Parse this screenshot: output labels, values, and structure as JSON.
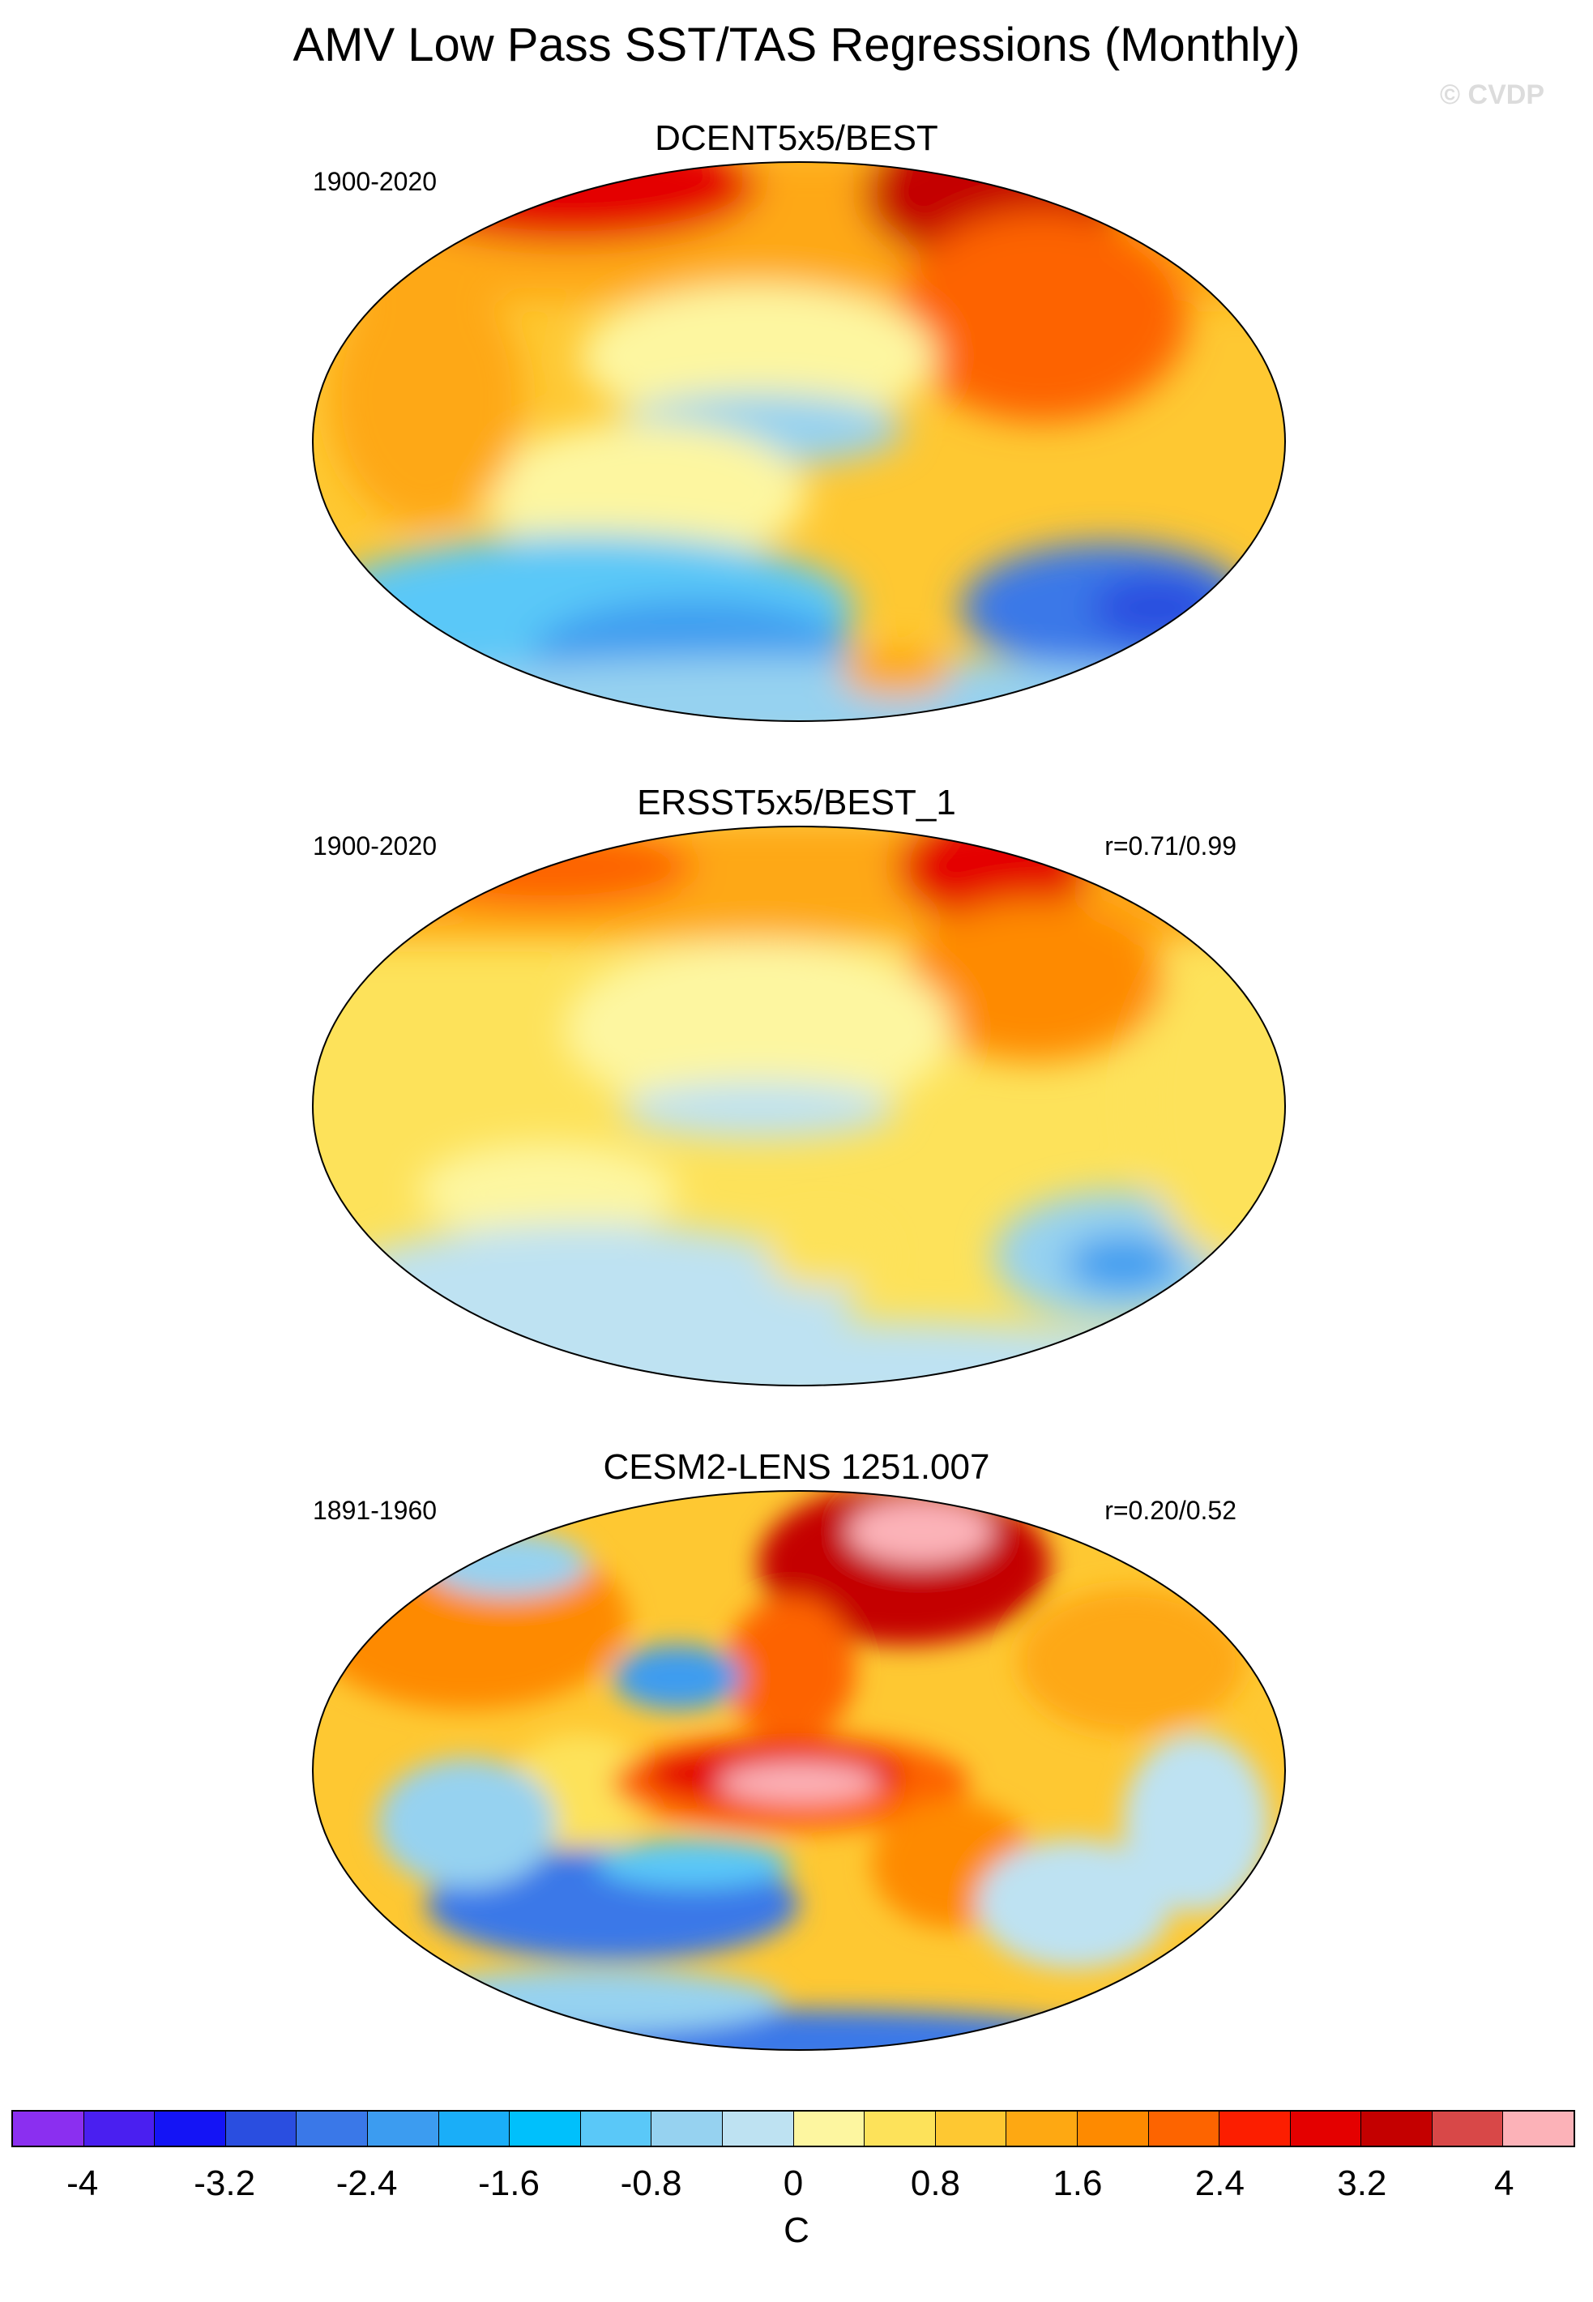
{
  "title": "AMV Low Pass SST/TAS Regressions (Monthly)",
  "copyright": "© CVDP",
  "panels": [
    {
      "title": "DCENT5x5/BEST",
      "period": "1900-2020",
      "corr": ""
    },
    {
      "title": "ERSST5x5/BEST_1",
      "period": "1900-2020",
      "corr": "r=0.71/0.99"
    },
    {
      "title": "CESM2-LENS 1251.007",
      "period": "1891-1960",
      "corr": "r=0.20/0.52"
    }
  ],
  "colorbar": {
    "unit": "C",
    "labels": [
      "-4",
      "-3.2",
      "-2.4",
      "-1.6",
      "-0.8",
      "0",
      "0.8",
      "1.6",
      "2.4",
      "3.2",
      "4"
    ],
    "colors": [
      "#8b2ff0",
      "#4a1ff0",
      "#1414f5",
      "#2a4ee0",
      "#3a78e8",
      "#3c9cf0",
      "#1aaef8",
      "#00c0fc",
      "#5ac8f8",
      "#96d2f0",
      "#bee2f2",
      "#fdf6a0",
      "#fde25a",
      "#fec832",
      "#fea812",
      "#fe8a00",
      "#fd6400",
      "#fc1e00",
      "#e40000",
      "#c40000",
      "#d84848",
      "#fcb2b8"
    ]
  }
}
